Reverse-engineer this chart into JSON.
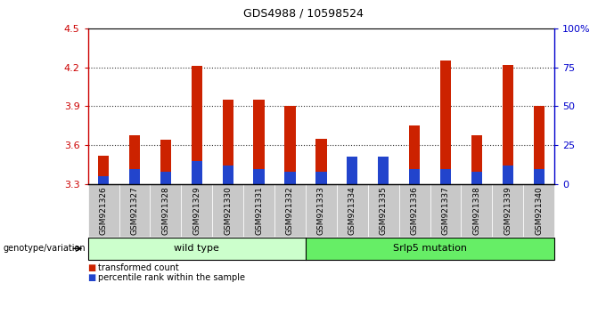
{
  "title": "GDS4988 / 10598524",
  "samples": [
    "GSM921326",
    "GSM921327",
    "GSM921328",
    "GSM921329",
    "GSM921330",
    "GSM921331",
    "GSM921332",
    "GSM921333",
    "GSM921334",
    "GSM921335",
    "GSM921336",
    "GSM921337",
    "GSM921338",
    "GSM921339",
    "GSM921340"
  ],
  "transformed_count": [
    3.52,
    3.68,
    3.64,
    4.21,
    3.95,
    3.95,
    3.9,
    3.65,
    3.35,
    3.35,
    3.75,
    4.25,
    3.68,
    4.22,
    3.9
  ],
  "percentile_rank": [
    5,
    10,
    8,
    15,
    12,
    10,
    8,
    8,
    18,
    18,
    10,
    10,
    8,
    12,
    10
  ],
  "ylim_left": [
    3.3,
    4.5
  ],
  "ylim_right": [
    0,
    100
  ],
  "yticks_left": [
    3.3,
    3.6,
    3.9,
    4.2,
    4.5
  ],
  "yticks_right": [
    0,
    25,
    50,
    75,
    100
  ],
  "bar_color_red": "#cc2200",
  "bar_color_blue": "#2244cc",
  "n_wild_type": 7,
  "n_mutation": 8,
  "wild_type_label": "wild type",
  "mutation_label": "Srlp5 mutation",
  "genotype_label": "genotype/variation",
  "legend_red": "transformed count",
  "legend_blue": "percentile rank within the sample",
  "bg_color_wt": "#ccffcc",
  "bg_color_mut": "#66ee66",
  "bar_width": 0.35,
  "base_value": 3.3,
  "tick_bg_color": "#c8c8c8",
  "left_axis_color": "#cc0000",
  "right_axis_color": "#0000cc",
  "grid_color": "#333333",
  "grid_dotted_at": [
    3.6,
    3.9,
    4.2
  ]
}
